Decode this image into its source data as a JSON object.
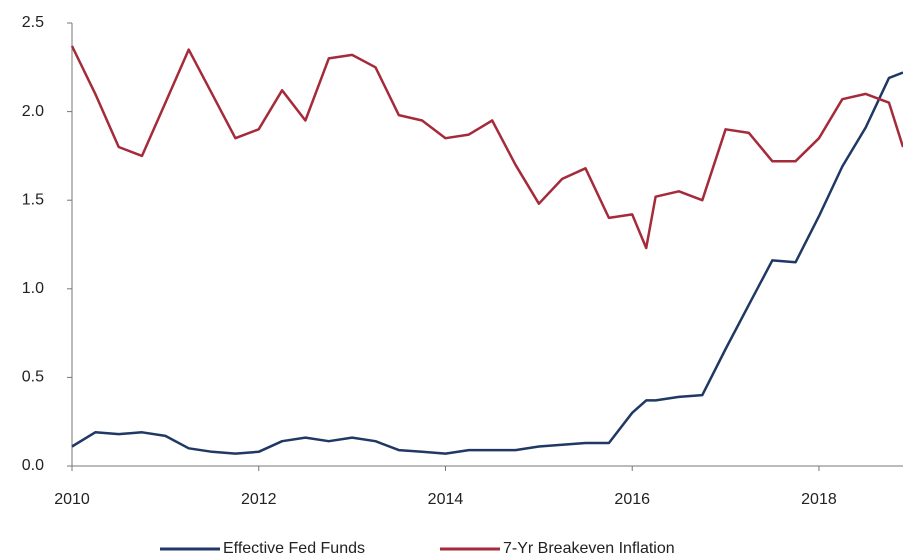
{
  "chart_data": {
    "type": "line",
    "x": [
      2010.0,
      2010.25,
      2010.5,
      2010.75,
      2011.0,
      2011.25,
      2011.5,
      2011.75,
      2012.0,
      2012.25,
      2012.5,
      2012.75,
      2013.0,
      2013.25,
      2013.5,
      2013.75,
      2014.0,
      2014.25,
      2014.5,
      2014.75,
      2015.0,
      2015.25,
      2015.5,
      2015.75,
      2016.0,
      2016.15,
      2016.25,
      2016.5,
      2016.75,
      2017.0,
      2017.25,
      2017.5,
      2017.75,
      2018.0,
      2018.25,
      2018.5,
      2018.75,
      2018.9
    ],
    "series": [
      {
        "name": "Effective Fed Funds",
        "color": "#1f3864",
        "values": [
          0.11,
          0.19,
          0.18,
          0.19,
          0.17,
          0.1,
          0.08,
          0.07,
          0.08,
          0.14,
          0.16,
          0.14,
          0.16,
          0.14,
          0.09,
          0.08,
          0.07,
          0.09,
          0.09,
          0.09,
          0.11,
          0.12,
          0.13,
          0.13,
          0.3,
          0.37,
          0.37,
          0.39,
          0.4,
          0.66,
          0.91,
          1.16,
          1.15,
          1.41,
          1.69,
          1.91,
          2.19,
          2.22
        ]
      },
      {
        "name": "7-Yr Breakeven Inflation",
        "color": "#a52a3a",
        "values": [
          2.37,
          2.1,
          1.8,
          1.75,
          2.05,
          2.35,
          2.1,
          1.85,
          1.9,
          2.12,
          1.95,
          2.3,
          2.32,
          2.25,
          1.98,
          1.95,
          1.85,
          1.87,
          1.95,
          1.7,
          1.48,
          1.62,
          1.68,
          1.4,
          1.42,
          1.23,
          1.52,
          1.55,
          1.5,
          1.9,
          1.88,
          1.72,
          1.72,
          1.85,
          2.07,
          2.1,
          2.05,
          1.8
        ]
      }
    ],
    "xlim": [
      2010,
      2018.9
    ],
    "xticks": [
      2010,
      2012,
      2014,
      2016,
      2018
    ],
    "ylim": [
      0,
      2.5
    ],
    "yticks": [
      {
        "value": 0,
        "label": "0.0"
      },
      {
        "value": 0.5,
        "label": "0.5"
      },
      {
        "value": 1,
        "label": "1.0"
      },
      {
        "value": 1.5,
        "label": "1.5"
      },
      {
        "value": 2,
        "label": "2.0"
      },
      {
        "value": 2.5,
        "label": "2.5"
      }
    ],
    "grid": false,
    "legend": "bottom"
  }
}
